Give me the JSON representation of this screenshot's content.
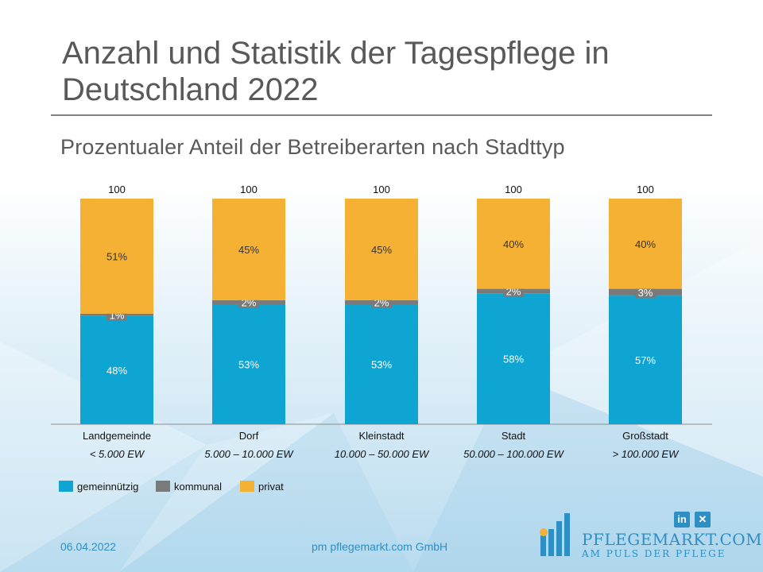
{
  "title": "Anzahl und Statistik der Tagespflege in Deutschland 2022",
  "subtitle": "Prozentualer Anteil der Betreiberarten nach Stadttyp",
  "chart_data": {
    "type": "bar",
    "stacked": true,
    "title": "Prozentualer Anteil der Betreiberarten nach Stadttyp",
    "categories": [
      "Landgemeinde",
      "Dorf",
      "Kleinstadt",
      "Stadt",
      "Großstadt"
    ],
    "category_sublabels": [
      "< 5.000 EW",
      "5.000 – 10.000 EW",
      "10.000 – 50.000 EW",
      "50.000 – 100.000 EW",
      "> 100.000 EW"
    ],
    "totals": [
      100,
      100,
      100,
      100,
      100
    ],
    "total_labels": [
      "100",
      "100",
      "100",
      "100",
      "100"
    ],
    "series": [
      {
        "name": "gemeinnützig",
        "color": "#0ea5d2",
        "values": [
          48,
          53,
          53,
          58,
          57
        ],
        "labels": [
          "48%",
          "53%",
          "53%",
          "58%",
          "57%"
        ]
      },
      {
        "name": "kommunal",
        "color": "#7a7a7a",
        "values": [
          1,
          2,
          2,
          2,
          3
        ],
        "labels": [
          "1%",
          "2%",
          "2%",
          "2%",
          "3%"
        ]
      },
      {
        "name": "privat",
        "color": "#f5b133",
        "values": [
          51,
          45,
          45,
          40,
          40
        ],
        "labels": [
          "51%",
          "45%",
          "45%",
          "40%",
          "40%"
        ]
      }
    ],
    "ylim": [
      0,
      100
    ],
    "xlabel": "",
    "ylabel": "",
    "legend_position": "bottom-left"
  },
  "footer": {
    "date": "06.04.2022",
    "company": "pm pflegemarkt.com GmbH",
    "logo_name": "PFLEGEMARKT.COM",
    "logo_claim": "AM PULS DER PFLEGE",
    "social_linkedin": "in",
    "social_xing": "✕"
  },
  "colors": {
    "accent": "#2e8fc4",
    "title": "#595959"
  }
}
